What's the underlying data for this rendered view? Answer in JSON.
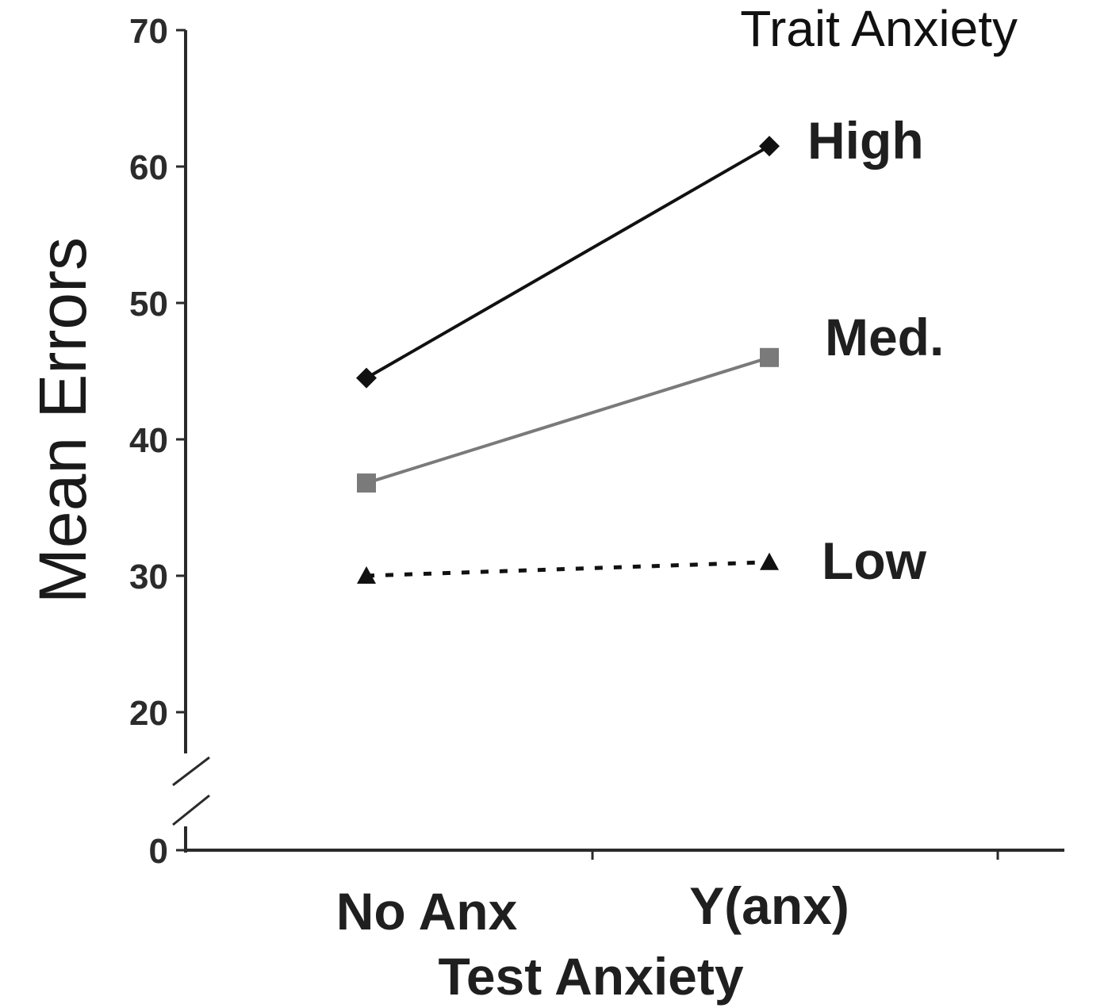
{
  "chart_data": {
    "type": "line",
    "legend_title": "Trait Anxiety",
    "xlabel": "Test Anxiety",
    "ylabel": "Mean Errors",
    "categories": [
      "No Anx",
      "Y(anx)"
    ],
    "yticks": [
      "70",
      "60",
      "50",
      "40",
      "30",
      "20",
      "0"
    ],
    "ylim": [
      20,
      70
    ],
    "axis_break": true,
    "grid": false,
    "legend_placement": "inline-right",
    "series": [
      {
        "name": "High",
        "values": [
          44.5,
          61.5
        ],
        "color": "#111111",
        "marker": "diamond",
        "line": "solid"
      },
      {
        "name": "Med.",
        "values": [
          36.8,
          46.0
        ],
        "color": "#7a7a7a",
        "marker": "square",
        "line": "solid"
      },
      {
        "name": "Low",
        "values": [
          30.0,
          31.0
        ],
        "color": "#111111",
        "marker": "triangle",
        "line": "dotted"
      }
    ]
  }
}
